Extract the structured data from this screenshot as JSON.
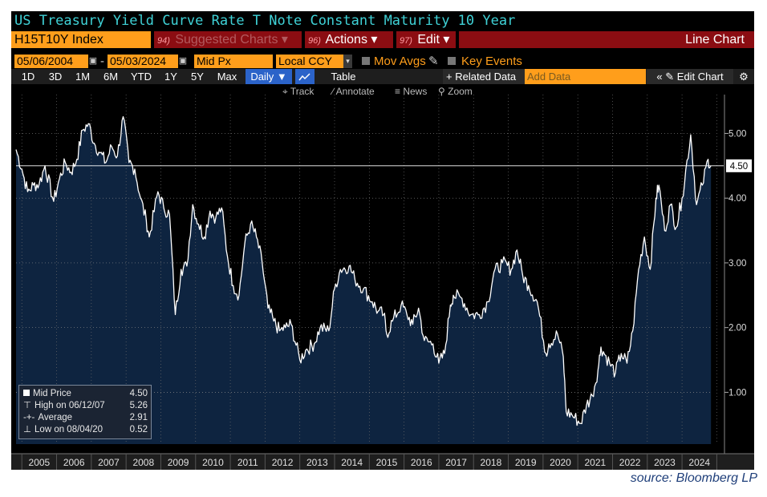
{
  "header": {
    "title": "US Treasury Yield Curve Rate T Note Constant Maturity 10 Year",
    "ticker": "H15T10Y Index",
    "menu": [
      {
        "num": "94)",
        "label": "Suggested Charts ▾"
      },
      {
        "num": "96)",
        "label": "Actions ▾"
      },
      {
        "num": "97)",
        "label": "Edit ▾"
      }
    ],
    "chart_mode": "Line Chart"
  },
  "controls": {
    "start_date": "05/06/2004",
    "date_sep": "-",
    "end_date": "05/03/2024",
    "price_field": "Mid Px",
    "currency": "Local CCY",
    "mov_avgs": "Mov Avgs",
    "key_events": "Key Events"
  },
  "toolbar": {
    "periods": [
      "1D",
      "3D",
      "1M",
      "6M",
      "YTD",
      "1Y",
      "5Y",
      "Max"
    ],
    "frequency": "Daily ▼",
    "table": "Table",
    "related": "+ Related Data",
    "add_data_placeholder": "Add Data",
    "edit_chart": "« ✎ Edit Chart",
    "settings_icon": "gear-icon"
  },
  "tools": [
    "⌖ Track",
    "∕ Annotate",
    "≡ News",
    "⚲ Zoom"
  ],
  "legend": [
    {
      "label": "Mid Price",
      "value": "4.50"
    },
    {
      "label": "High on 06/12/07",
      "value": "5.26"
    },
    {
      "label": "Average",
      "value": "2.91"
    },
    {
      "label": "Low on 08/04/20",
      "value": "0.52"
    }
  ],
  "current_label": "4.50",
  "source": "source: Bloomberg LP",
  "colors": {
    "background": "#000000",
    "area": "#0e2440",
    "line": "#ffffff",
    "ticker": "#ff9e1b",
    "menu": "#8b0d12",
    "title": "#3fd1d6"
  },
  "chart_data": {
    "type": "area",
    "series": [
      {
        "x": [
          "2004-05",
          "2004-07",
          "2004-09",
          "2004-11",
          "2005-01",
          "2005-03",
          "2005-06",
          "2005-08",
          "2005-10",
          "2005-12",
          "2006-02",
          "2006-04",
          "2006-06",
          "2006-08",
          "2006-10",
          "2006-12",
          "2007-02",
          "2007-04",
          "2007-06",
          "2007-08",
          "2007-10",
          "2007-12",
          "2008-02",
          "2008-03",
          "2008-06",
          "2008-08",
          "2008-10",
          "2008-12",
          "2009-02",
          "2009-04",
          "2009-06",
          "2009-08",
          "2009-10",
          "2009-12",
          "2010-02",
          "2010-04",
          "2010-06",
          "2010-08",
          "2010-10",
          "2010-12",
          "2011-02",
          "2011-04",
          "2011-06",
          "2011-08",
          "2011-10",
          "2011-12",
          "2012-02",
          "2012-04",
          "2012-07",
          "2012-09",
          "2012-12",
          "2013-02",
          "2013-05",
          "2013-07",
          "2013-09",
          "2013-12",
          "2014-02",
          "2014-05",
          "2014-08",
          "2014-10",
          "2014-12",
          "2015-01",
          "2015-03",
          "2015-06",
          "2015-08",
          "2015-10",
          "2015-12",
          "2016-02",
          "2016-05",
          "2016-07",
          "2016-09",
          "2016-11",
          "2016-12",
          "2017-03",
          "2017-06",
          "2017-09",
          "2017-12",
          "2018-02",
          "2018-05",
          "2018-08",
          "2018-10",
          "2018-12",
          "2019-02",
          "2019-05",
          "2019-08",
          "2019-09",
          "2019-12",
          "2020-02",
          "2020-03",
          "2020-05",
          "2020-08",
          "2020-10",
          "2020-12",
          "2021-02",
          "2021-03",
          "2021-06",
          "2021-08",
          "2021-10",
          "2021-12",
          "2022-02",
          "2022-04",
          "2022-06",
          "2022-08",
          "2022-10",
          "2022-11",
          "2023-01",
          "2023-03",
          "2023-05",
          "2023-07",
          "2023-10",
          "2023-12",
          "2024-02",
          "2024-04",
          "2024-05"
        ],
        "y": [
          4.75,
          4.45,
          4.1,
          4.2,
          4.22,
          4.5,
          3.95,
          4.3,
          4.55,
          4.4,
          4.6,
          5.05,
          5.15,
          4.85,
          4.7,
          4.55,
          4.8,
          4.65,
          5.26,
          4.55,
          4.45,
          4.0,
          3.65,
          3.4,
          4.1,
          3.85,
          3.75,
          2.2,
          2.9,
          2.95,
          3.9,
          3.6,
          3.4,
          3.8,
          3.7,
          3.85,
          3.1,
          2.65,
          2.5,
          3.3,
          3.6,
          3.4,
          3.0,
          2.3,
          2.1,
          1.95,
          2.0,
          2.05,
          1.5,
          1.65,
          1.75,
          2.0,
          1.95,
          2.6,
          2.9,
          2.95,
          2.75,
          2.6,
          2.4,
          2.25,
          2.2,
          1.9,
          2.1,
          2.35,
          2.2,
          2.05,
          2.3,
          1.8,
          1.75,
          1.45,
          1.6,
          2.35,
          2.5,
          2.45,
          2.2,
          2.2,
          2.4,
          2.85,
          3.0,
          2.9,
          3.2,
          2.8,
          2.65,
          2.4,
          1.6,
          1.75,
          1.9,
          1.55,
          0.7,
          0.65,
          0.52,
          0.8,
          0.95,
          1.35,
          1.7,
          1.45,
          1.3,
          1.6,
          1.45,
          1.95,
          2.9,
          3.4,
          2.9,
          4.0,
          4.2,
          3.5,
          3.9,
          3.55,
          4.0,
          4.98,
          3.9,
          4.2,
          4.6,
          4.5
        ]
      }
    ],
    "yticks": [
      1.0,
      2.0,
      3.0,
      4.0,
      5.0
    ],
    "ylim": [
      0.2,
      5.6
    ],
    "xticks": [
      "2005",
      "2006",
      "2007",
      "2008",
      "2009",
      "2010",
      "2011",
      "2012",
      "2013",
      "2014",
      "2015",
      "2016",
      "2017",
      "2018",
      "2019",
      "2020",
      "2021",
      "2022",
      "2023",
      "2024"
    ],
    "reference_line": 4.5,
    "grid": true,
    "legend_position": "bottom-left"
  }
}
